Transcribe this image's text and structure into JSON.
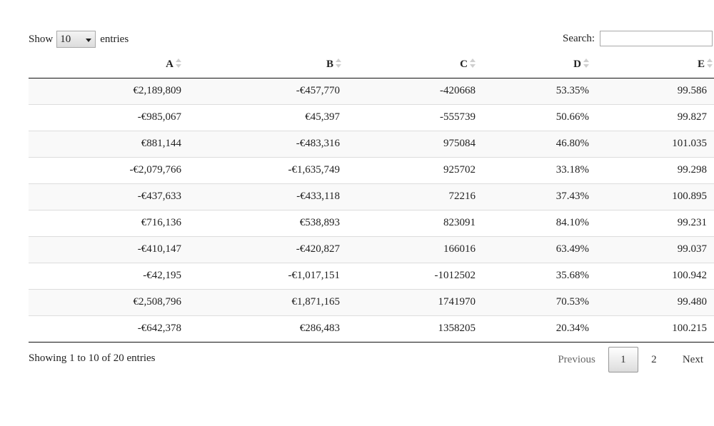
{
  "length_control": {
    "show_label": "Show",
    "selected_value": "10",
    "entries_label": "entries"
  },
  "search": {
    "label": "Search:",
    "value": ""
  },
  "table": {
    "columns": [
      "A",
      "B",
      "C",
      "D",
      "E"
    ],
    "rows": [
      [
        "€2,189,809",
        "-€457,770",
        "-420668",
        "53.35%",
        "99.586"
      ],
      [
        "-€985,067",
        "€45,397",
        "-555739",
        "50.66%",
        "99.827"
      ],
      [
        "€881,144",
        "-€483,316",
        "975084",
        "46.80%",
        "101.035"
      ],
      [
        "-€2,079,766",
        "-€1,635,749",
        "925702",
        "33.18%",
        "99.298"
      ],
      [
        "-€437,633",
        "-€433,118",
        "72216",
        "37.43%",
        "100.895"
      ],
      [
        "€716,136",
        "€538,893",
        "823091",
        "84.10%",
        "99.231"
      ],
      [
        "-€410,147",
        "-€420,827",
        "166016",
        "63.49%",
        "99.037"
      ],
      [
        "-€42,195",
        "-€1,017,151",
        "-1012502",
        "35.68%",
        "100.942"
      ],
      [
        "€2,508,796",
        "€1,871,165",
        "1741970",
        "70.53%",
        "99.480"
      ],
      [
        "-€642,378",
        "€286,483",
        "1358205",
        "20.34%",
        "100.215"
      ]
    ]
  },
  "info": {
    "text": "Showing 1 to 10 of 20 entries"
  },
  "pagination": {
    "previous_label": "Previous",
    "pages": [
      "1",
      "2"
    ],
    "current_page": "1",
    "next_label": "Next"
  }
}
